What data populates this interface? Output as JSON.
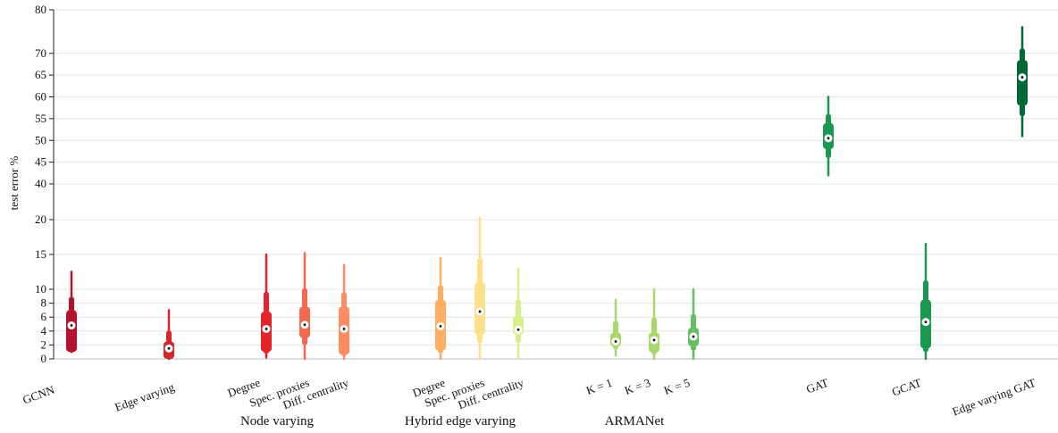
{
  "chart_data": {
    "type": "violin",
    "ylabel": "test error %",
    "ylim": [
      0,
      80
    ],
    "yticks": [
      0,
      2,
      4,
      6,
      8,
      10,
      15,
      20,
      40,
      45,
      50,
      55,
      60,
      65,
      70,
      80
    ],
    "grid": true,
    "series": [
      {
        "label": "GCNN",
        "group": "",
        "color": "#b5122d",
        "min": 1.0,
        "q1": 1.0,
        "median": 4.8,
        "q3": 7.0,
        "max": 12.5
      },
      {
        "label": "Edge varying",
        "group": "",
        "color": "#d7262a",
        "min": 0.0,
        "q1": 0.0,
        "median": 1.5,
        "q3": 2.5,
        "max": 7.0
      },
      {
        "label": "Degree",
        "group": "Node varying",
        "color": "#e3242b",
        "min": 0.2,
        "q1": 1.0,
        "median": 4.3,
        "q3": 6.8,
        "max": 15.0
      },
      {
        "label": "Spec. proxies",
        "group": "Node varying",
        "color": "#f26a4f",
        "min": 0.0,
        "q1": 3.0,
        "median": 4.9,
        "q3": 7.5,
        "max": 15.2
      },
      {
        "label": "Diff. centrality",
        "group": "Node varying",
        "color": "#fc8d62",
        "min": 0.0,
        "q1": 0.6,
        "median": 4.3,
        "q3": 7.5,
        "max": 13.5
      },
      {
        "label": "Degree",
        "group": "Hybrid edge varying",
        "color": "#fdae61",
        "min": 0.0,
        "q1": 1.2,
        "median": 4.7,
        "q3": 8.5,
        "max": 14.5
      },
      {
        "label": "Spec. proxies",
        "group": "Hybrid edge varying",
        "color": "#fee08b",
        "min": 0.0,
        "q1": 3.5,
        "median": 6.8,
        "q3": 11.0,
        "max": 21.0
      },
      {
        "label": "Diff. centrality",
        "group": "Hybrid edge varying",
        "color": "#d9ef8b",
        "min": 0.0,
        "q1": 3.5,
        "median": 4.2,
        "q3": 6.2,
        "max": 13.0
      },
      {
        "label": "K = 1",
        "group": "ARMANet",
        "color": "#a6d96a",
        "min": 0.5,
        "q1": 1.8,
        "median": 2.5,
        "q3": 3.8,
        "max": 8.5
      },
      {
        "label": "K = 3",
        "group": "ARMANet",
        "color": "#a6d96a",
        "min": 0.0,
        "q1": 0.9,
        "median": 2.7,
        "q3": 3.8,
        "max": 10.0
      },
      {
        "label": "K = 5",
        "group": "ARMANet",
        "color": "#66bd63",
        "min": 0.0,
        "q1": 1.8,
        "median": 3.2,
        "q3": 4.5,
        "max": 10.0
      },
      {
        "label": "GAT",
        "group": "",
        "color": "#1a9850",
        "min": 42.0,
        "q1": 48.0,
        "median": 50.5,
        "q3": 54.0,
        "max": 60.0
      },
      {
        "label": "GCAT",
        "group": "",
        "color": "#1a9850",
        "min": 0.0,
        "q1": 1.5,
        "median": 5.3,
        "q3": 8.5,
        "max": 16.5
      },
      {
        "label": "Edge varying GAT",
        "group": "",
        "color": "#006837",
        "min": 51.0,
        "q1": 58.0,
        "median": 64.5,
        "q3": 68.5,
        "max": 76.0
      }
    ],
    "group_labels": [
      "Node varying",
      "Hybrid edge varying",
      "ARMANet"
    ]
  }
}
